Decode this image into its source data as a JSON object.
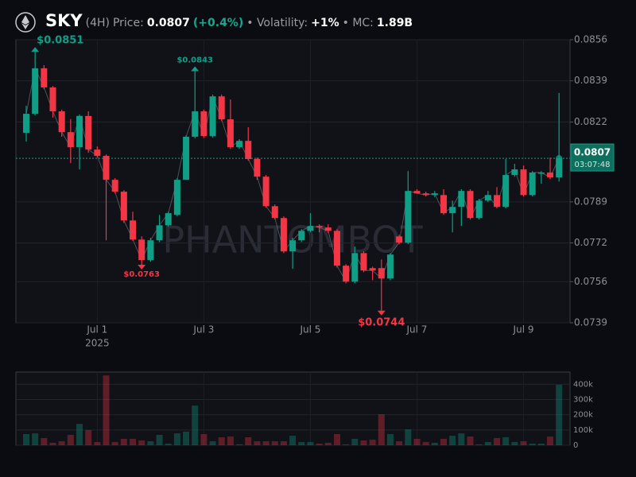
{
  "chart_data": {
    "type": "candlestick",
    "symbol": "SKY",
    "interval": "(4H)",
    "header": {
      "price_label": "Price:",
      "change": "(+0.4%)",
      "volatility_label": "• Volatility:",
      "volatility": "+1%",
      "mc_label": "• MC:",
      "mc": "1.89B"
    },
    "watermark": "PHANTOMBOT",
    "categories": [
      null,
      null,
      null,
      null,
      null,
      null,
      null,
      null,
      "Jul 1",
      null,
      null,
      null,
      null,
      null,
      null,
      null,
      null,
      null,
      null,
      null,
      "Jul 3",
      null,
      null,
      null,
      null,
      null,
      null,
      null,
      null,
      null,
      null,
      null,
      "Jul 5",
      null,
      null,
      null,
      null,
      null,
      null,
      null,
      null,
      null,
      null,
      null,
      "Jul 7",
      null,
      null,
      null,
      null,
      null,
      null,
      null,
      null,
      null,
      null,
      null,
      "Jul 9",
      null,
      null,
      null,
      null
    ],
    "year_label": "2025",
    "open": [
      0.08175,
      0.08254,
      0.08442,
      0.08363,
      0.08264,
      0.08178,
      0.08116,
      0.08245,
      0.08106,
      0.0808,
      0.07981,
      0.07932,
      0.07813,
      0.07734,
      0.07649,
      0.07731,
      0.07793,
      0.07836,
      0.07981,
      0.08159,
      0.08264,
      0.08162,
      0.08326,
      0.08231,
      0.08116,
      0.08142,
      0.08067,
      0.07994,
      0.07872,
      0.07823,
      0.07685,
      0.07731,
      0.0777,
      0.0779,
      0.07784,
      0.0777,
      0.07626,
      0.0756,
      0.07678,
      0.07616,
      0.07616,
      0.07573,
      0.07747,
      0.07721,
      0.07935,
      0.07925,
      0.07918,
      0.07918,
      0.07843,
      0.07869,
      0.07935,
      0.07823,
      0.07895,
      0.07918,
      0.07869,
      0.08001,
      0.08024,
      0.07918,
      0.08007,
      0.08011,
      0.07991
    ],
    "close": [
      0.08254,
      0.08442,
      0.08363,
      0.08264,
      0.08178,
      0.08116,
      0.08245,
      0.08106,
      0.0808,
      0.07981,
      0.07932,
      0.07813,
      0.07734,
      0.07649,
      0.07731,
      0.07793,
      0.07843,
      0.07981,
      0.08159,
      0.08264,
      0.08162,
      0.08326,
      0.08231,
      0.08116,
      0.08142,
      0.08067,
      0.07994,
      0.07872,
      0.07823,
      0.07685,
      0.07731,
      0.0777,
      0.0779,
      0.07784,
      0.0777,
      0.07626,
      0.0756,
      0.07678,
      0.07606,
      0.07606,
      0.07573,
      0.07672,
      0.07721,
      0.07935,
      0.07925,
      0.07918,
      0.07925,
      0.07843,
      0.07869,
      0.07935,
      0.07823,
      0.07895,
      0.07918,
      0.07869,
      0.08001,
      0.08024,
      0.07918,
      0.08011,
      0.08011,
      0.07991,
      0.0807
    ],
    "high": [
      0.08287,
      0.0851,
      0.08455,
      0.08369,
      0.08271,
      0.08232,
      0.08251,
      0.08264,
      0.08119,
      0.08086,
      0.07988,
      0.07938,
      0.07849,
      0.07747,
      0.07741,
      0.07836,
      0.07849,
      0.07988,
      0.08165,
      0.0843,
      0.08271,
      0.08333,
      0.08333,
      0.08313,
      0.08149,
      0.08198,
      0.08073,
      0.08001,
      0.07879,
      0.0783,
      0.07741,
      0.07777,
      0.07843,
      0.07797,
      0.07797,
      0.07777,
      0.07632,
      0.07705,
      0.07685,
      0.07622,
      0.07652,
      0.07678,
      0.07754,
      0.08017,
      0.07942,
      0.07932,
      0.07935,
      0.07942,
      0.07895,
      0.07942,
      0.07942,
      0.07902,
      0.07935,
      0.07951,
      0.08067,
      0.08047,
      0.0804,
      0.08017,
      0.08017,
      0.08073,
      0.0834
    ],
    "low": [
      0.08139,
      0.08247,
      0.08356,
      0.08238,
      0.08159,
      0.0805,
      0.08024,
      0.08093,
      0.08073,
      0.07731,
      0.07925,
      0.07803,
      0.07728,
      0.0763,
      0.07642,
      0.07724,
      0.07787,
      0.0783,
      0.07981,
      0.08152,
      0.08155,
      0.08155,
      0.08224,
      0.08109,
      0.08109,
      0.0806,
      0.07981,
      0.07866,
      0.07817,
      0.07678,
      0.07613,
      0.07724,
      0.07764,
      0.07764,
      0.07761,
      0.07619,
      0.07553,
      0.07553,
      0.07599,
      0.07566,
      0.0744,
      0.07566,
      0.07715,
      0.07715,
      0.07932,
      0.07912,
      0.07909,
      0.07836,
      0.07764,
      0.0779,
      0.07817,
      0.07817,
      0.07889,
      0.07863,
      0.07863,
      0.07994,
      0.07912,
      0.07912,
      0.07965,
      0.07984,
      0.07974
    ],
    "volume": [
      73000,
      78000,
      47000,
      16000,
      26000,
      68000,
      140000,
      99000,
      21000,
      458000,
      21000,
      42000,
      42000,
      31000,
      26000,
      68000,
      10000,
      78000,
      89000,
      260000,
      73000,
      26000,
      52000,
      57000,
      5000,
      52000,
      26000,
      26000,
      26000,
      26000,
      62000,
      21000,
      21000,
      10000,
      16000,
      73000,
      5000,
      42000,
      31000,
      36000,
      203000,
      73000,
      26000,
      104000,
      42000,
      21000,
      16000,
      42000,
      62000,
      78000,
      57000,
      5000,
      21000,
      47000,
      52000,
      21000,
      26000,
      10000,
      10000,
      57000,
      396000
    ],
    "up_color": "#0f9f86",
    "down_color": "#f23645",
    "ylim": [
      0.0739,
      0.0856
    ],
    "yticks": [
      0.0856,
      0.0839,
      0.0822,
      0.0789,
      0.0772,
      0.0756,
      0.0739
    ],
    "volume_ylim": [
      0,
      480000
    ],
    "volume_yticks": [
      0,
      {
        "value": 100000,
        "label": "100k"
      },
      {
        "value": 200000,
        "label": "200k"
      },
      {
        "value": 300000,
        "label": "300k"
      },
      {
        "value": 400000,
        "label": "400k"
      }
    ],
    "grid": true,
    "last_price": 0.0807,
    "countdown": "03:07:48",
    "annotations": [
      {
        "text": "$0.0851",
        "value": 0.0851
      },
      {
        "text": "$0.0843",
        "value": 0.0843
      },
      {
        "text": "$0.0763",
        "value": 0.0763
      },
      {
        "text": "$0.0744",
        "value": 0.0744
      }
    ]
  }
}
